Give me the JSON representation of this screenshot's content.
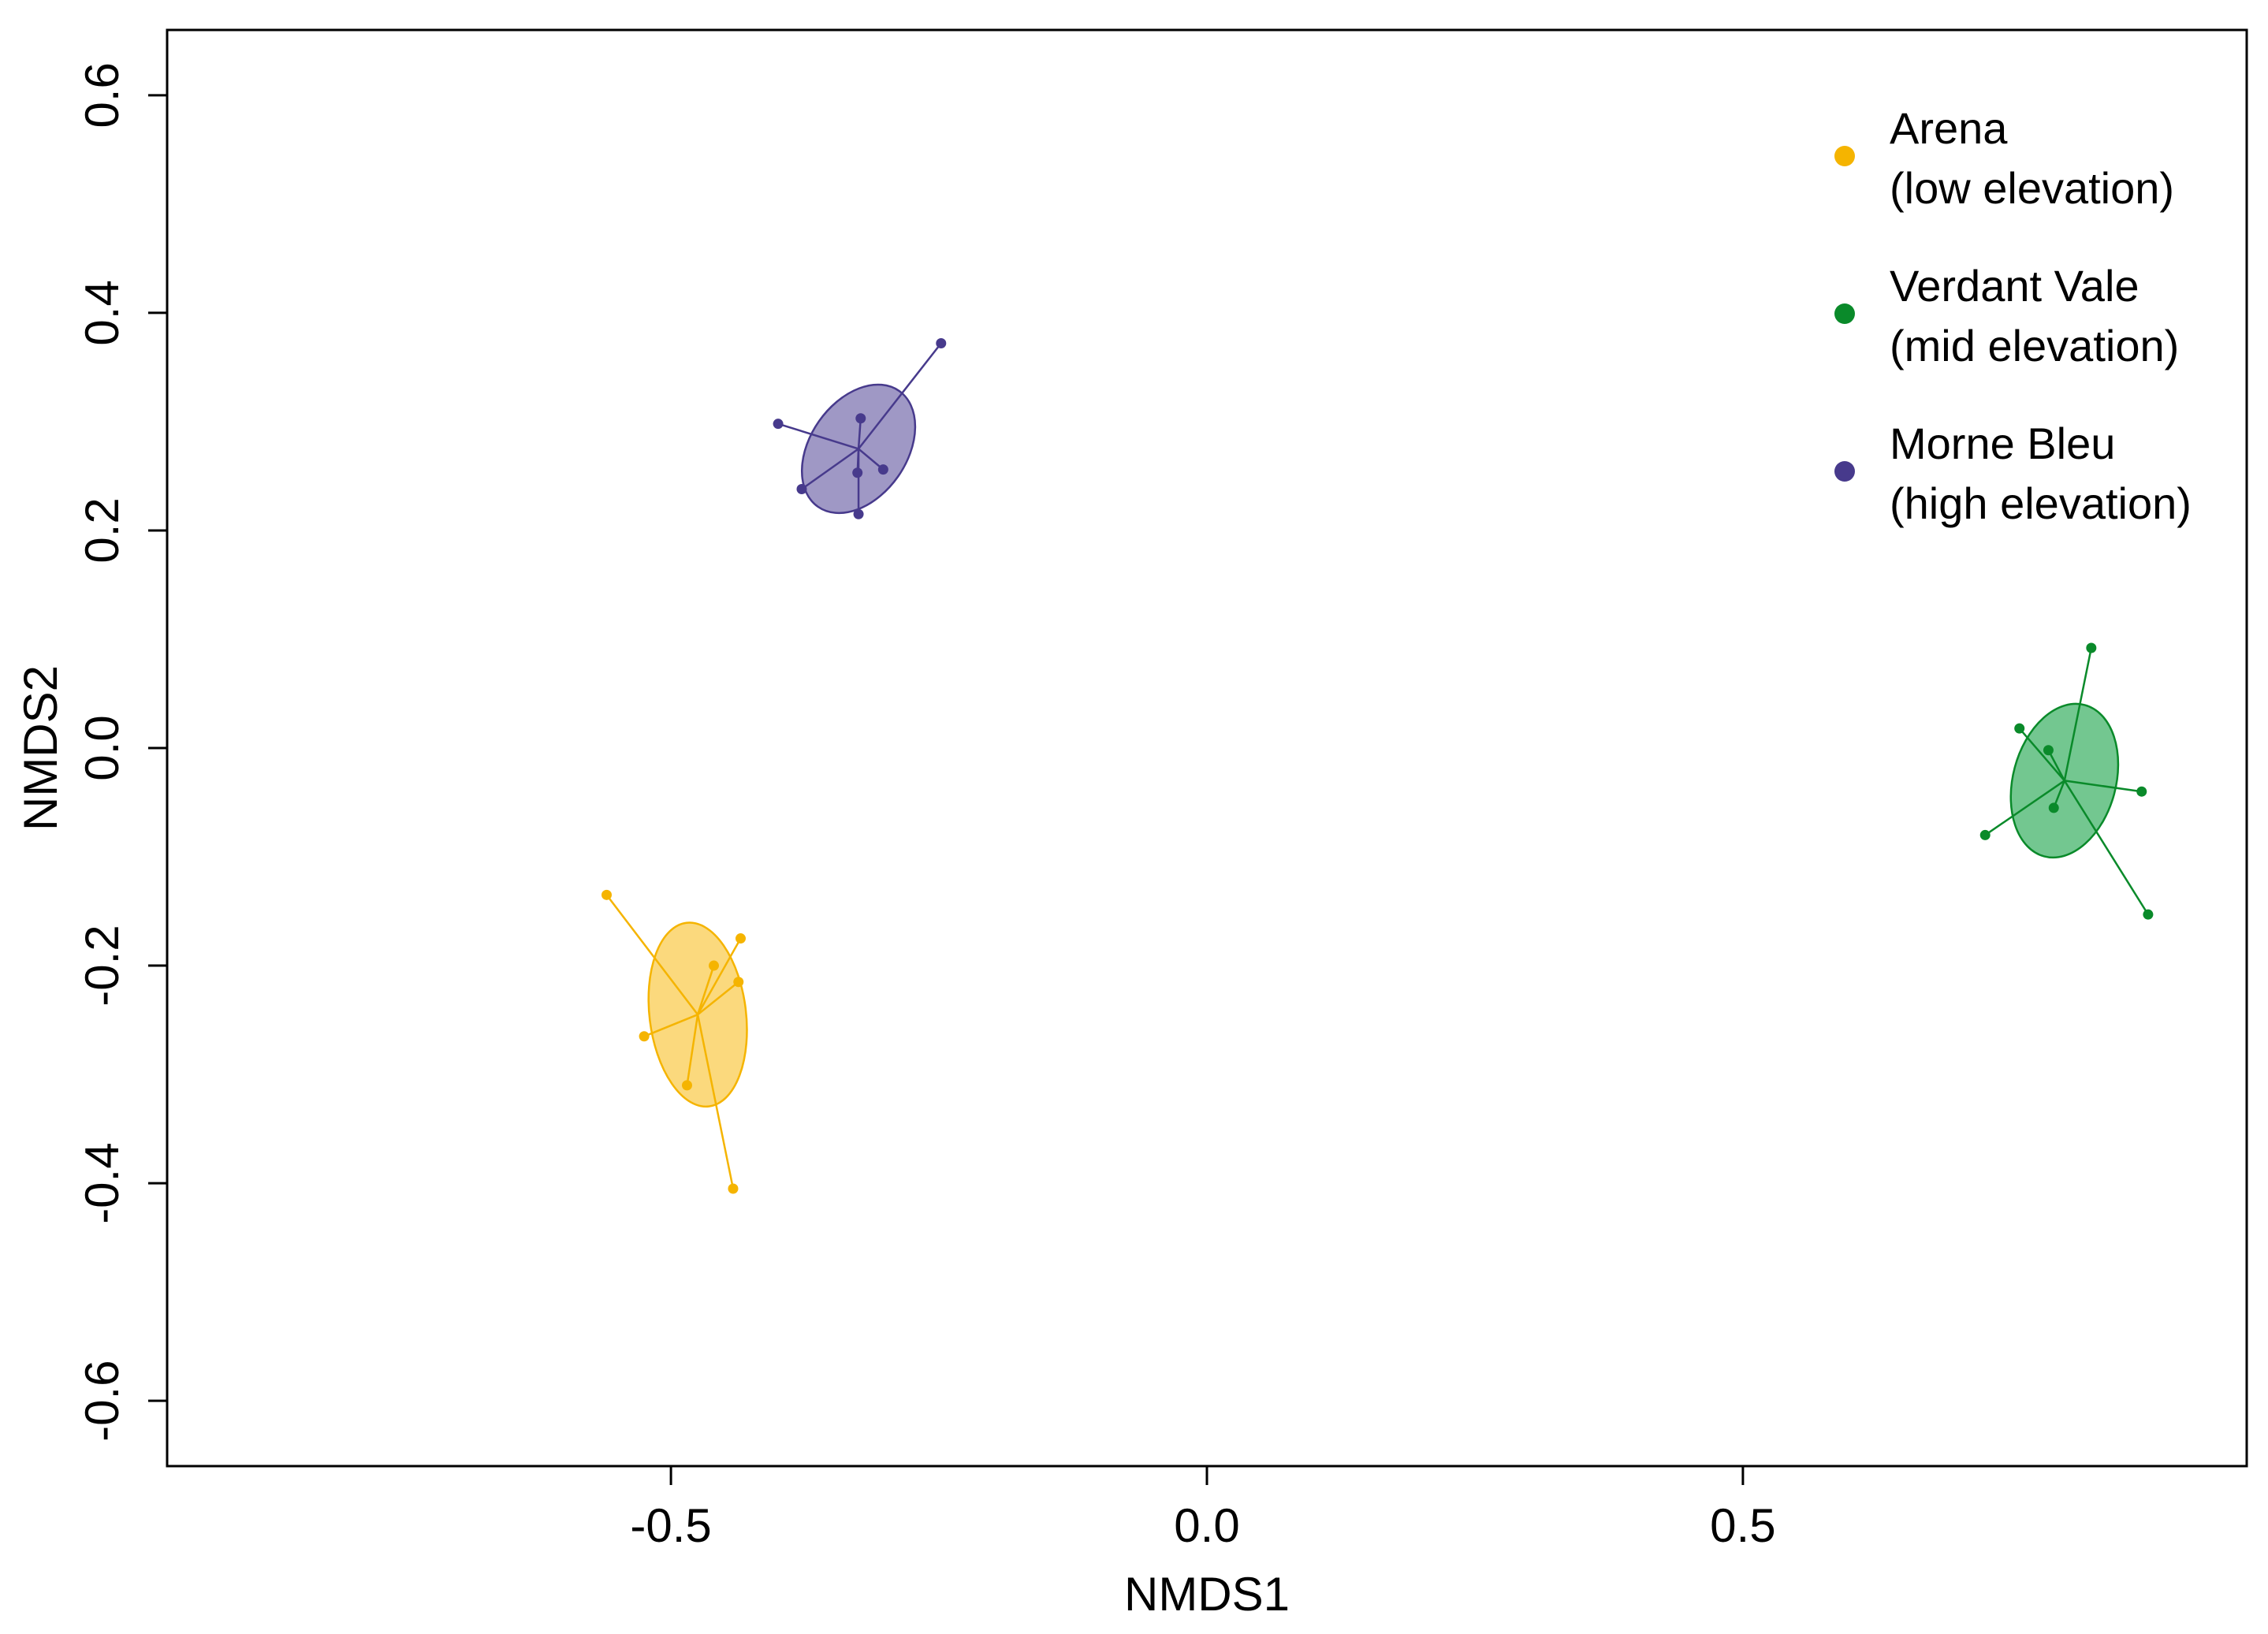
{
  "chart_data": {
    "type": "scatter",
    "title": "",
    "xlabel": "NMDS1",
    "ylabel": "NMDS2",
    "xlim": [
      -0.97,
      0.97
    ],
    "ylim": [
      -0.66,
      0.66
    ],
    "x_ticks": [
      -0.5,
      0.0,
      0.5
    ],
    "x_tick_labels": [
      "-0.5",
      "0.0",
      "0.5"
    ],
    "y_ticks": [
      -0.6,
      -0.4,
      -0.2,
      0.0,
      0.2,
      0.4,
      0.6
    ],
    "y_tick_labels": [
      "-0.6",
      "-0.4",
      "-0.2",
      "0.0",
      "0.2",
      "0.4",
      "0.6"
    ],
    "grid": false,
    "legend_position": "top-right",
    "series": [
      {
        "name": "Arena",
        "legend_line1": "Arena",
        "legend_line2": "(low elevation)",
        "color": "#f5b400",
        "fill_color": "#fbd776",
        "centroid": [
          -0.475,
          -0.245
        ],
        "ellipse": {
          "center": [
            -0.475,
            -0.245
          ],
          "semi_axes": [
            0.045,
            0.085
          ],
          "rotation_deg": -7
        },
        "points": [
          [
            -0.56,
            -0.135
          ],
          [
            -0.435,
            -0.175
          ],
          [
            -0.46,
            -0.2
          ],
          [
            -0.437,
            -0.215
          ],
          [
            -0.525,
            -0.265
          ],
          [
            -0.485,
            -0.31
          ],
          [
            -0.442,
            -0.405
          ]
        ]
      },
      {
        "name": "Verdant Vale",
        "legend_line1": "Verdant Vale",
        "legend_line2": "(mid elevation)",
        "color": "#0a8a2a",
        "fill_color": "#6cc48a",
        "centroid": [
          0.8,
          -0.03
        ],
        "ellipse": {
          "center": [
            0.8,
            -0.03
          ],
          "semi_axes": [
            0.048,
            0.072
          ],
          "rotation_deg": 15
        },
        "points": [
          [
            0.825,
            0.092
          ],
          [
            0.758,
            0.018
          ],
          [
            0.785,
            -0.002
          ],
          [
            0.872,
            -0.04
          ],
          [
            0.79,
            -0.055
          ],
          [
            0.726,
            -0.08
          ],
          [
            0.878,
            -0.153
          ]
        ]
      },
      {
        "name": "Morne Bleu",
        "legend_line1": "Morne Bleu",
        "legend_line2": "(high elevation)",
        "color": "#473a8c",
        "fill_color": "#9a92c2",
        "centroid": [
          -0.325,
          0.275
        ],
        "ellipse": {
          "center": [
            -0.325,
            0.275
          ],
          "semi_axes": [
            0.045,
            0.065
          ],
          "rotation_deg": 35
        },
        "points": [
          [
            -0.248,
            0.372
          ],
          [
            -0.4,
            0.298
          ],
          [
            -0.323,
            0.303
          ],
          [
            -0.302,
            0.256
          ],
          [
            -0.326,
            0.253
          ],
          [
            -0.378,
            0.238
          ],
          [
            -0.325,
            0.215
          ]
        ]
      }
    ]
  }
}
